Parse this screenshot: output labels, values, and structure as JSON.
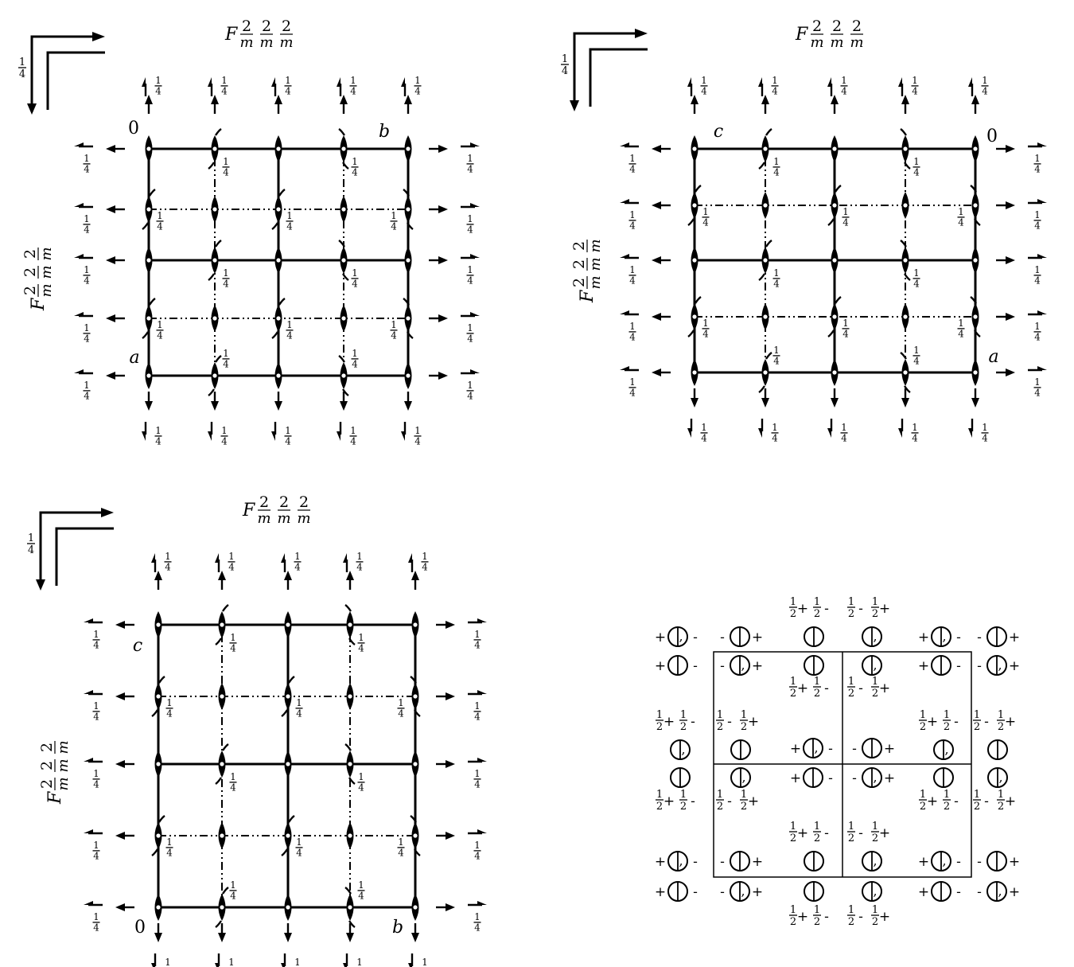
{
  "symbol": {
    "F": "F",
    "two": "2",
    "m": "m"
  },
  "quarter": {
    "num": "1",
    "den": "4"
  },
  "half": {
    "num": "1",
    "den": "2"
  },
  "origin_label": "0",
  "axis_a": "a",
  "axis_b": "b",
  "axis_c": "c",
  "signs": {
    "plus": "+",
    "minus": "-"
  },
  "comma": ","
}
